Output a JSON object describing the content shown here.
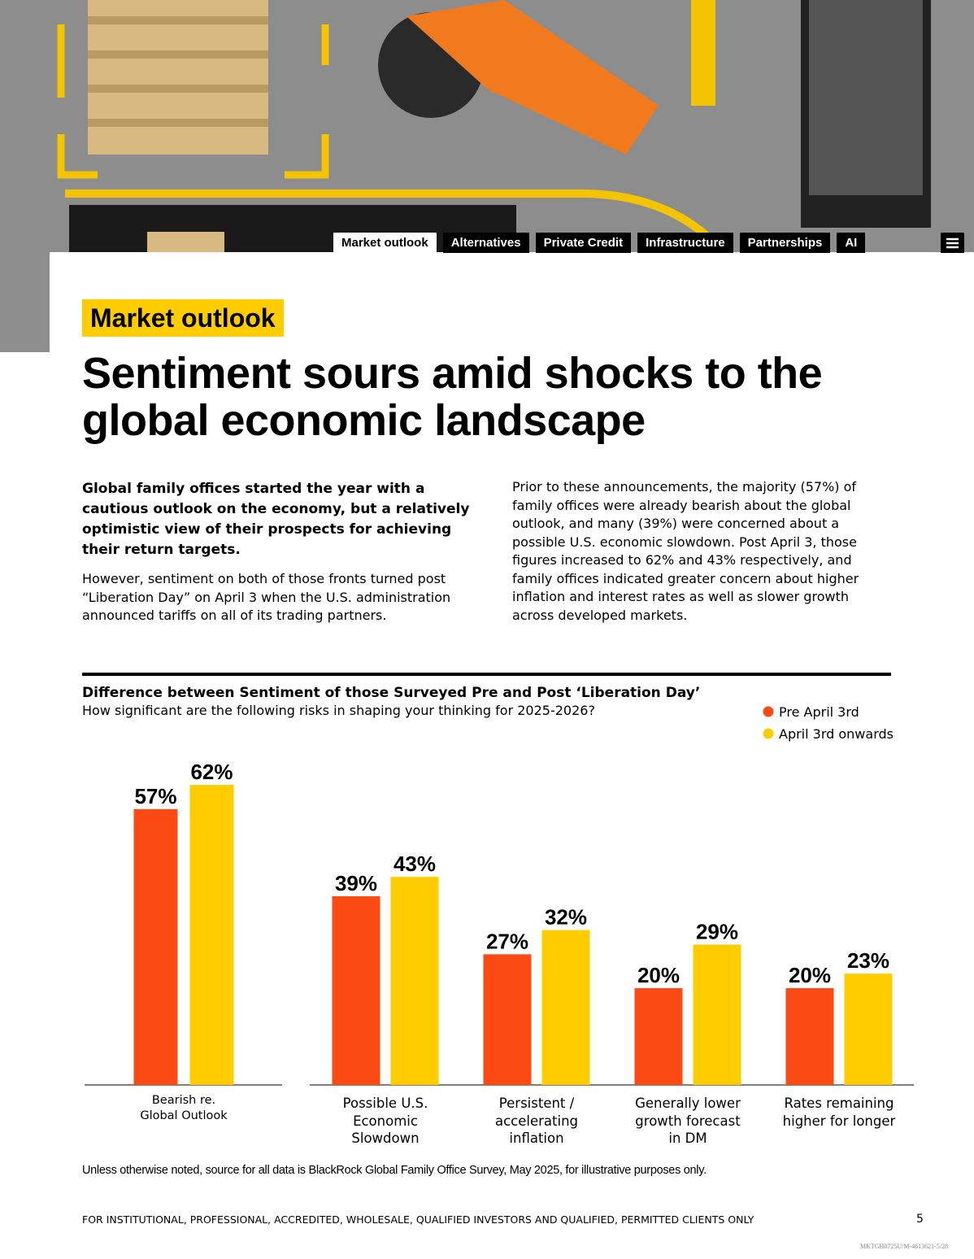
{
  "nav": {
    "tabs": [
      "Market outlook",
      "Alternatives",
      "Private Credit",
      "Infrastructure",
      "Partnerships",
      "AI"
    ]
  },
  "section_tag": "Market outlook",
  "title": "Sentiment sours amid shocks to the global economic landscape",
  "intro": {
    "lead": "Global family offices started the year with a cautious outlook on the economy, but a relatively optimistic view of their prospects for achieving their return targets.",
    "body": "However, sentiment on both of those fronts turned post “Liberation Day” on April 3 when the U.S. administration announced tariffs on all of its trading partners.",
    "right": "Prior to these announcements, the majority (57%) of family offices were already bearish about the global outlook, and many (39%) were concerned about a possible U.S. economic slowdown. Post April 3, those figures increased to 62% and 43% respectively, and family offices indicated greater concern about higher inflation and interest rates as well as slower growth across developed markets."
  },
  "chart_data": {
    "type": "bar",
    "title": "Difference between Sentiment of those Surveyed Pre and Post ‘Liberation Day’",
    "subtitle": "How significant are the following risks in shaping your thinking for 2025-2026?",
    "categories": [
      "Bearish re. Global Outlook",
      "Possible U.S. Economic Slowdown",
      "Persistent / accelerating inflation",
      "Generally lower growth forecast in DM",
      "Rates remaining higher for longer"
    ],
    "series": [
      {
        "name": "Pre April 3rd",
        "color": "#fc4a14",
        "values": [
          57,
          39,
          27,
          20,
          20
        ],
        "value_labels": [
          "57%",
          "39%",
          "27%",
          "20%",
          "20%"
        ]
      },
      {
        "name": "April 3rd onwards",
        "color": "#ffcc00",
        "values": [
          62,
          43,
          32,
          29,
          23
        ],
        "value_labels": [
          "62%",
          "43%",
          "32%",
          "29%",
          "23%"
        ]
      }
    ]
  },
  "source_note": "Unless otherwise noted, source for all data is BlackRock Global Family Office Survey, May 2025, for illustrative purposes only.",
  "footer": {
    "disclaimer": "FOR INSTITUTIONAL, PROFESSIONAL, ACCREDITED, WHOLESALE, QUALIFIED INVESTORS AND QUALIFIED, PERMITTED CLIENTS ONLY",
    "page_number": "5",
    "code": "MKTGH0725U/M-4613621-5/28"
  }
}
